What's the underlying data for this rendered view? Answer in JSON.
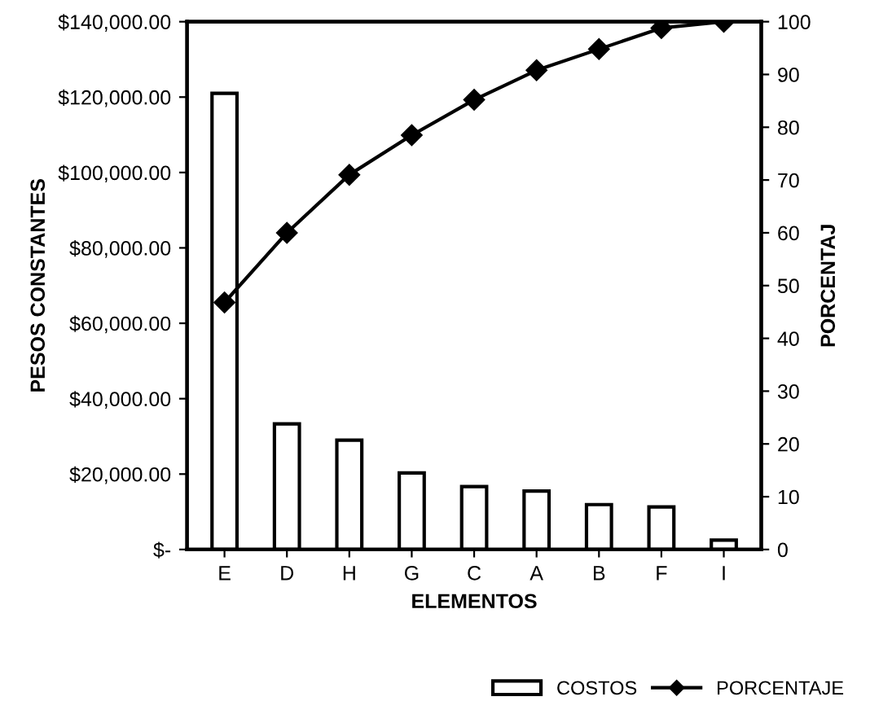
{
  "chart_data": {
    "type": "bar",
    "xlabel": "ELEMENTOS",
    "ylabel": "PESOS CONSTANTES",
    "y2label": "PORCENTAJ",
    "categories": [
      "E",
      "D",
      "H",
      "G",
      "C",
      "A",
      "B",
      "F",
      "I"
    ],
    "series": [
      {
        "name": "COSTOS",
        "color": "#ffffff",
        "values": [
          121000,
          33300,
          29000,
          20300,
          16700,
          15500,
          11900,
          11300,
          2500
        ]
      },
      {
        "name": "PORCENTAJE",
        "type": "line",
        "axis": "y2",
        "color": "#000000",
        "marker": "diamond",
        "values": [
          46.8,
          60,
          71,
          78.5,
          85.2,
          90.8,
          94.8,
          98.8,
          100
        ]
      }
    ],
    "ylim": [
      0,
      140000
    ],
    "yticks": [
      {
        "value": 0,
        "label": "$-"
      },
      {
        "value": 20000,
        "label": "$20,000.00"
      },
      {
        "value": 40000,
        "label": "$40,000.00"
      },
      {
        "value": 60000,
        "label": "$60,000.00"
      },
      {
        "value": 80000,
        "label": "$80,000.00"
      },
      {
        "value": 100000,
        "label": "$100,000.00"
      },
      {
        "value": 120000,
        "label": "$120,000.00"
      },
      {
        "value": 140000,
        "label": "$140,000.00"
      }
    ],
    "y2lim": [
      0,
      100
    ],
    "y2ticks": [
      0,
      10,
      20,
      30,
      40,
      50,
      60,
      70,
      80,
      90,
      100
    ],
    "grid": false,
    "legend": "bottom right"
  }
}
